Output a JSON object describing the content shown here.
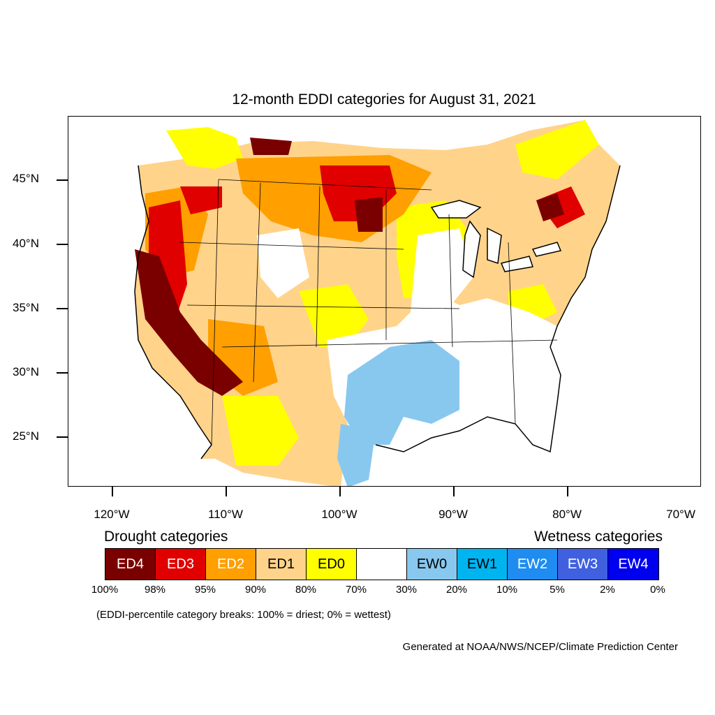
{
  "title": "12-month EDDI categories for August 31, 2021",
  "lat_labels": [
    "45°N",
    "40°N",
    "35°N",
    "30°N",
    "25°N"
  ],
  "lon_labels": [
    "120°W",
    "110°W",
    "100°W",
    "90°W",
    "80°W",
    "70°W"
  ],
  "legend": {
    "drought_heading": "Drought categories",
    "wetness_heading": "Wetness categories",
    "categories": [
      {
        "label": "ED4",
        "color": "#7a0000",
        "text_color": "#ffffff"
      },
      {
        "label": "ED3",
        "color": "#e00000",
        "text_color": "#ffffff"
      },
      {
        "label": "ED2",
        "color": "#ff9f00",
        "text_color": "#ffffff"
      },
      {
        "label": "ED1",
        "color": "#ffd38a",
        "text_color": "#000000"
      },
      {
        "label": "ED0",
        "color": "#ffff00",
        "text_color": "#000000"
      },
      {
        "label": "",
        "color": "#ffffff",
        "text_color": "#000000"
      },
      {
        "label": "EW0",
        "color": "#88c8ee",
        "text_color": "#000000"
      },
      {
        "label": "EW1",
        "color": "#00b4f0",
        "text_color": "#000000"
      },
      {
        "label": "EW2",
        "color": "#1e8cf0",
        "text_color": "#ffffff"
      },
      {
        "label": "EW3",
        "color": "#4060e0",
        "text_color": "#ffffff"
      },
      {
        "label": "EW4",
        "color": "#0000f0",
        "text_color": "#ffffff"
      }
    ],
    "percentiles": [
      "100%",
      "98%",
      "95%",
      "90%",
      "80%",
      "70%",
      "30%",
      "20%",
      "10%",
      "5%",
      "2%",
      "0%"
    ]
  },
  "note": "(EDDI-percentile category breaks: 100% = driest; 0% = wettest)",
  "credit": "Generated at NOAA/NWS/NCEP/Climate Prediction Center"
}
